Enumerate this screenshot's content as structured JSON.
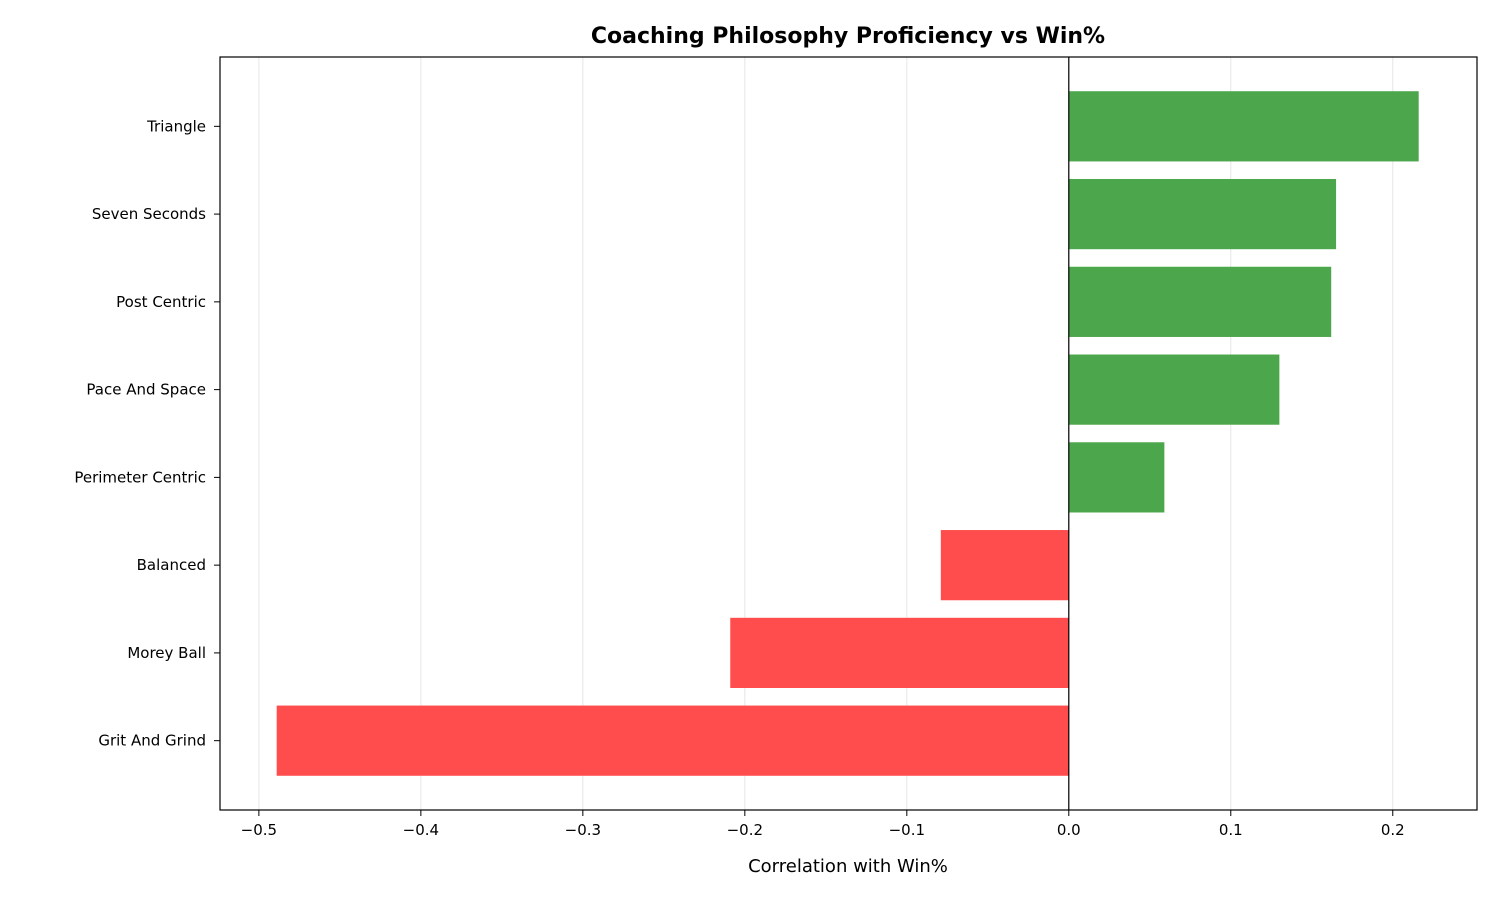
{
  "chart_data": {
    "type": "bar",
    "orientation": "horizontal",
    "title": "Coaching Philosophy Proficiency vs Win%",
    "xlabel": "Correlation with Win%",
    "ylabel": "",
    "categories": [
      "Grit And Grind",
      "Morey Ball",
      "Balanced",
      "Perimeter Centric",
      "Pace And Space",
      "Post Centric",
      "Seven Seconds",
      "Triangle"
    ],
    "values": [
      -0.489,
      -0.209,
      -0.079,
      0.059,
      0.13,
      0.162,
      0.165,
      0.216
    ],
    "xlim": [
      -0.524,
      0.252
    ],
    "xticks": [
      -0.5,
      -0.4,
      -0.3,
      -0.2,
      -0.1,
      0.0,
      0.1,
      0.2
    ],
    "xtick_labels": [
      "−0.5",
      "−0.4",
      "−0.3",
      "−0.2",
      "−0.1",
      "0.0",
      "0.1",
      "0.2"
    ],
    "grid": "x-axis vertical lines",
    "zero_line": true,
    "colors": {
      "positive": "#4ca64c",
      "negative": "#ff4d4d",
      "grid": "#e6e6e6"
    }
  }
}
